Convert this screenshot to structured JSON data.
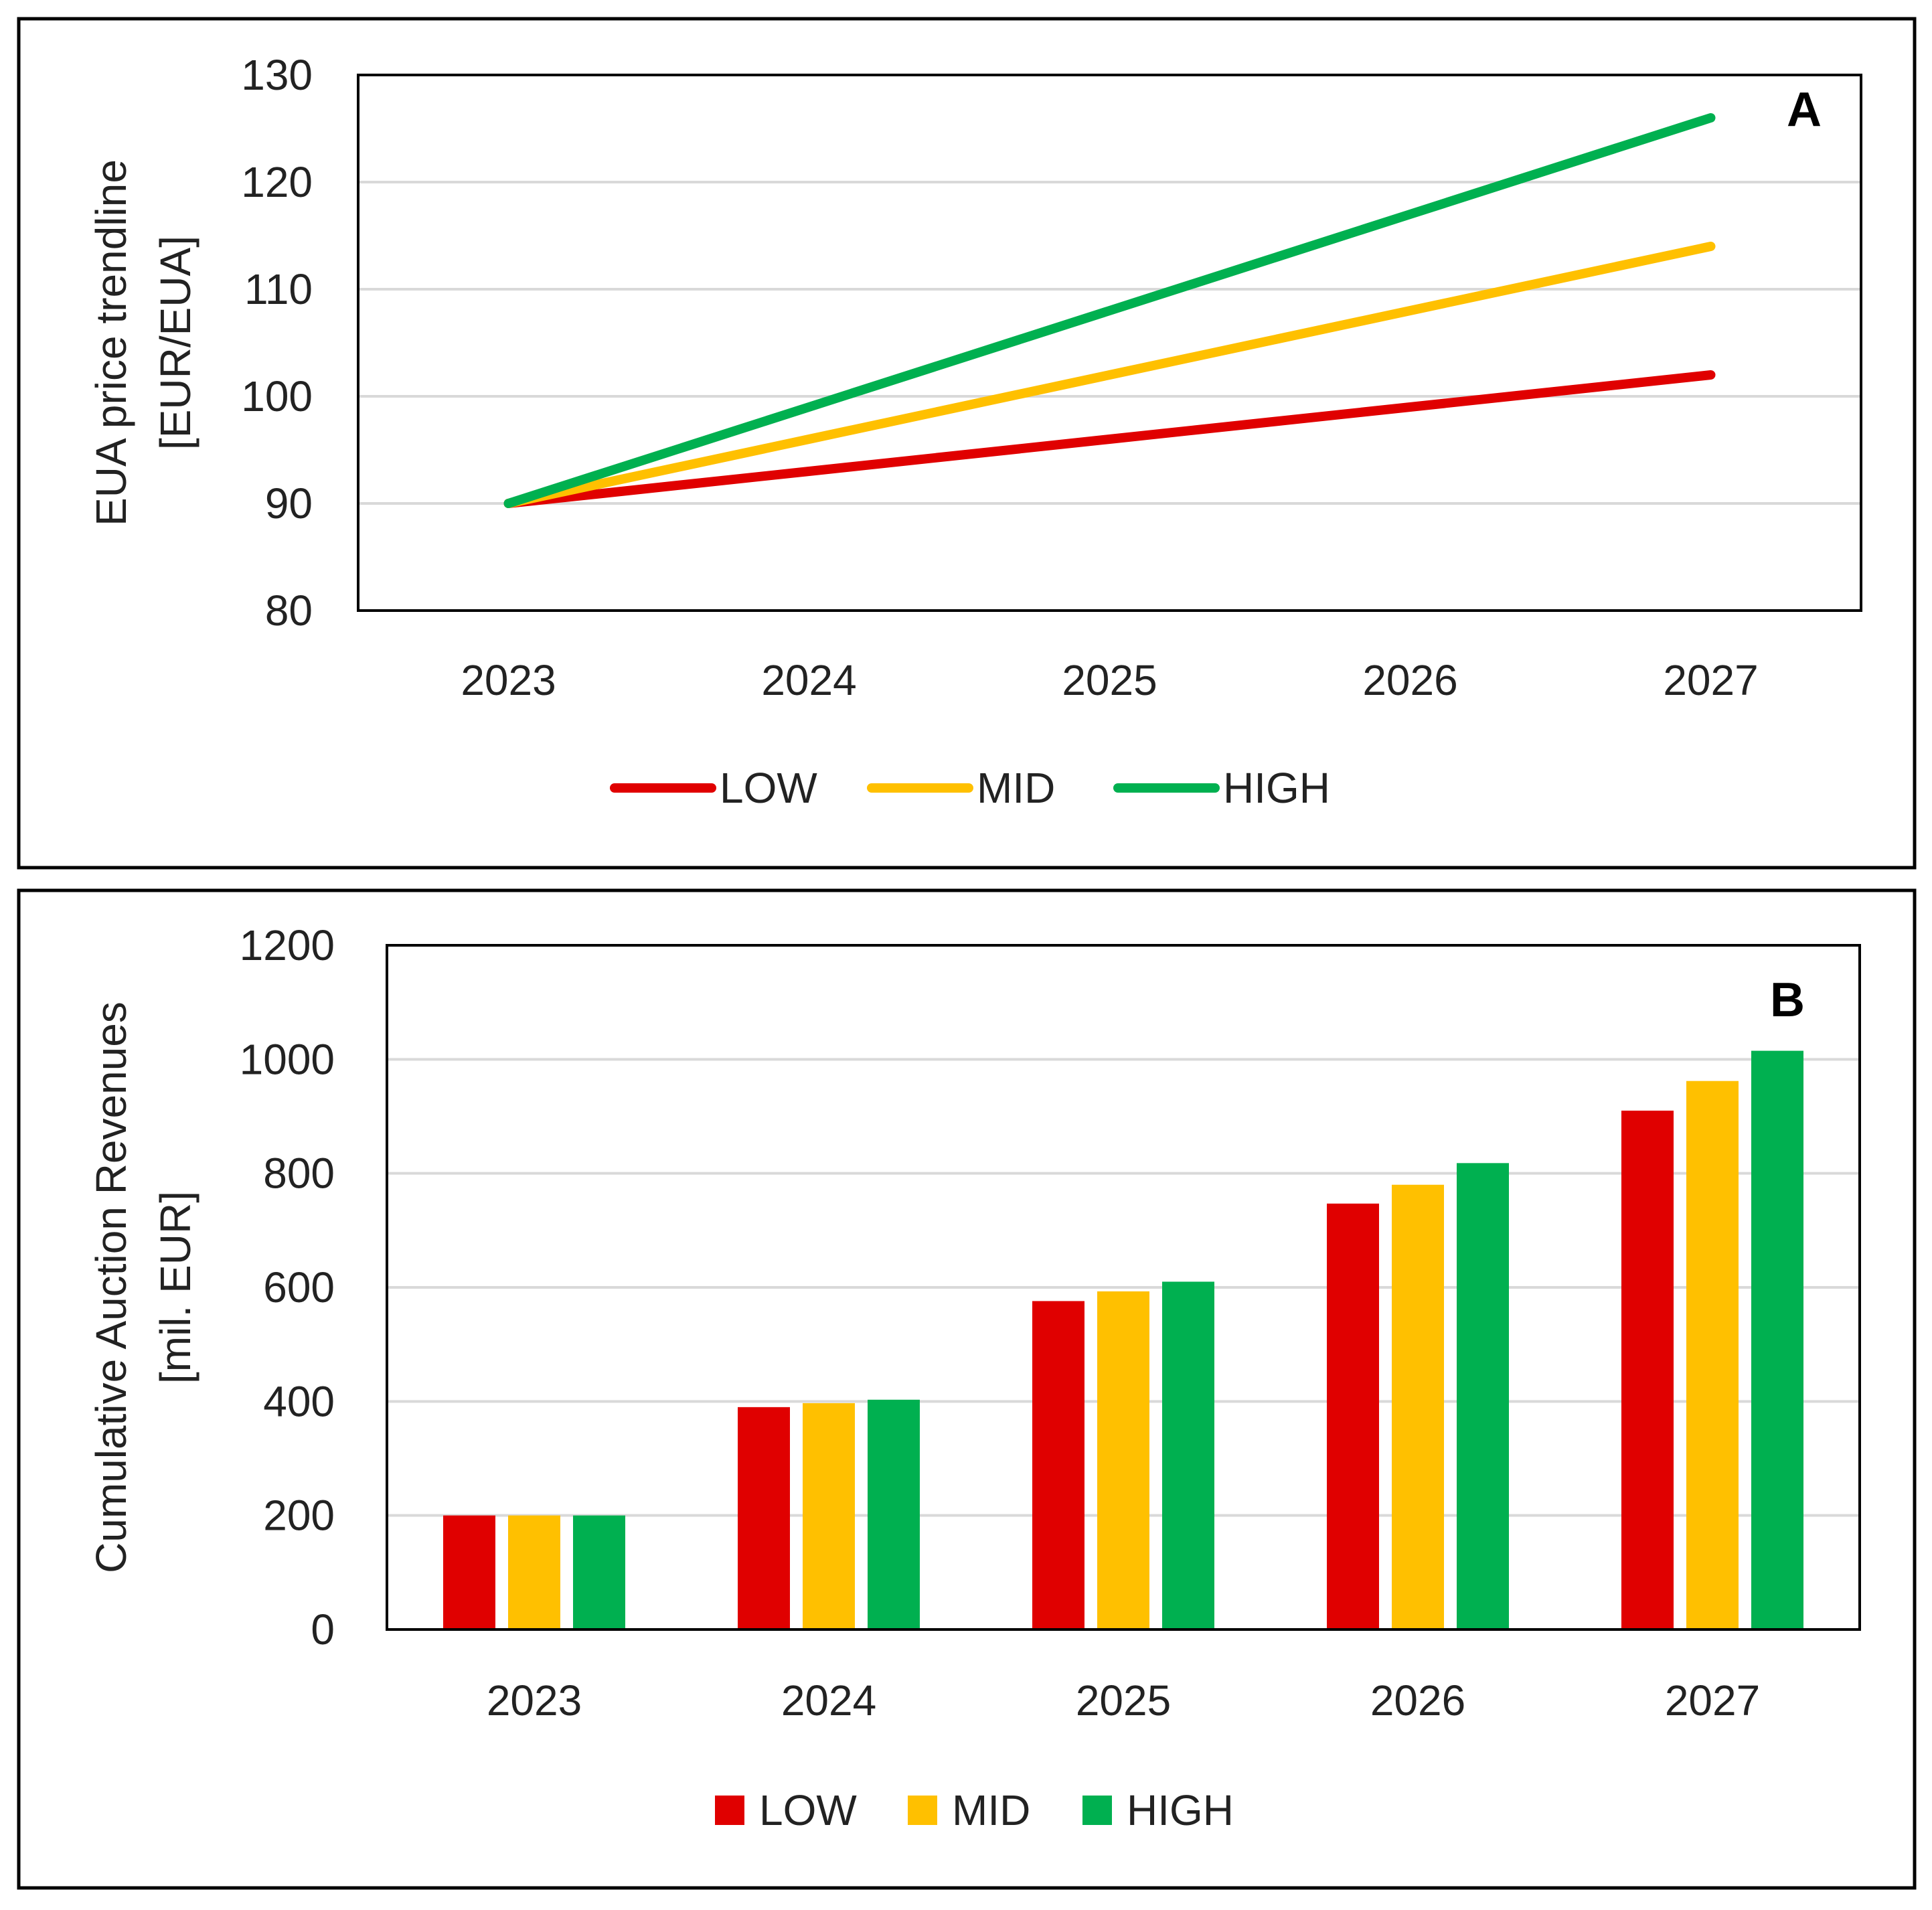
{
  "colors": {
    "LOW": "#e00000",
    "MID": "#ffc000",
    "HIGH": "#00b050"
  },
  "chart_data": [
    {
      "type": "line",
      "panel_label": "A",
      "xlabel": "",
      "ylabel_lines": [
        "EUA price trendline",
        "[EUR/EUA]"
      ],
      "categories": [
        "2023",
        "2024",
        "2025",
        "2026",
        "2027"
      ],
      "ylim": [
        80,
        130
      ],
      "yticks": [
        80,
        90,
        100,
        110,
        120,
        130
      ],
      "grid": true,
      "legend": "bottom",
      "series": [
        {
          "name": "LOW",
          "values": [
            90,
            93,
            96,
            99,
            102
          ]
        },
        {
          "name": "MID",
          "values": [
            90,
            96,
            102,
            108,
            114
          ]
        },
        {
          "name": "HIGH",
          "values": [
            90,
            99,
            108,
            117,
            126
          ]
        }
      ]
    },
    {
      "type": "bar",
      "panel_label": "B",
      "xlabel": "",
      "ylabel_lines": [
        "Cumulative Auction Revenues",
        "[mil. EUR]"
      ],
      "categories": [
        "2023",
        "2024",
        "2025",
        "2026",
        "2027"
      ],
      "ylim": [
        0,
        1200
      ],
      "yticks": [
        0,
        200,
        400,
        600,
        800,
        1000,
        1200
      ],
      "grid": true,
      "legend": "bottom",
      "series": [
        {
          "name": "LOW",
          "values": [
            200,
            390,
            576,
            747,
            910
          ]
        },
        {
          "name": "MID",
          "values": [
            200,
            397,
            593,
            780,
            962
          ]
        },
        {
          "name": "HIGH",
          "values": [
            200,
            403,
            610,
            818,
            1015
          ]
        }
      ]
    }
  ]
}
